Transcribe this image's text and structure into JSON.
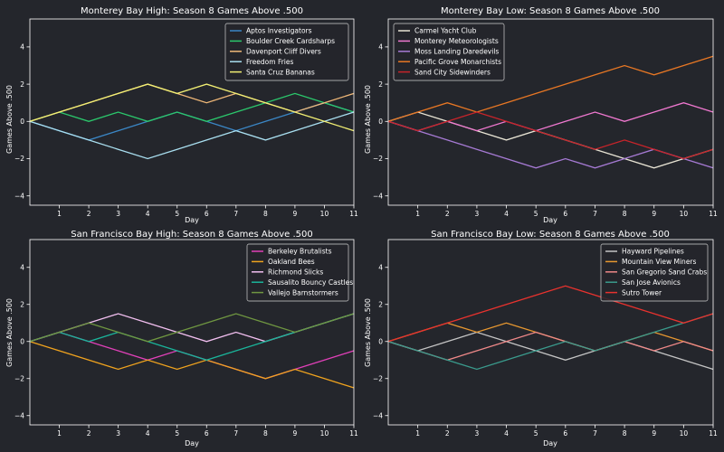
{
  "figure": {
    "background": "#24262c",
    "axes_color": "#ffffff",
    "legend_bg": "#24262c",
    "legend_border": "#cfcfcf"
  },
  "chart_data": [
    {
      "type": "line",
      "title": "Monterey Bay High: Season 8 Games Above .500",
      "xlabel": "Day",
      "ylabel": "Games Above .500",
      "x": [
        0,
        1,
        2,
        3,
        4,
        5,
        6,
        7,
        8,
        9,
        10,
        11
      ],
      "xticks": [
        1,
        2,
        3,
        4,
        5,
        6,
        7,
        8,
        9,
        10,
        11
      ],
      "yticks": [
        -4,
        -2,
        0,
        2,
        4
      ],
      "xlim": [
        0,
        11
      ],
      "ylim": [
        -4.5,
        5.5
      ],
      "grid": false,
      "legend": "top-right",
      "series": [
        {
          "name": "Aptos Investigators",
          "color": "#3b87c6",
          "values": [
            0,
            -0.5,
            -1,
            -0.5,
            0,
            0.5,
            0,
            -0.5,
            0,
            0.5,
            1,
            0.5
          ]
        },
        {
          "name": "Boulder Creek Cardsharps",
          "color": "#2bc86c",
          "values": [
            0,
            0.5,
            0,
            0.5,
            0,
            0.5,
            0,
            0.5,
            1,
            1.5,
            1,
            0.5
          ]
        },
        {
          "name": "Davenport Cliff Divers",
          "color": "#f0b878",
          "values": [
            0,
            0.5,
            1,
            1.5,
            2,
            1.5,
            1,
            1.5,
            1,
            0.5,
            1,
            1.5
          ]
        },
        {
          "name": "Freedom Fries",
          "color": "#a9dff0",
          "values": [
            0,
            -0.5,
            -1,
            -1.5,
            -2,
            -1.5,
            -1,
            -0.5,
            -1,
            -0.5,
            0,
            0.5
          ]
        },
        {
          "name": "Santa Cruz Bananas",
          "color": "#f2ef73",
          "values": [
            0,
            0.5,
            1,
            1.5,
            2,
            1.5,
            2,
            1.5,
            1,
            0.5,
            0,
            -0.5
          ]
        }
      ]
    },
    {
      "type": "line",
      "title": "Monterey Bay Low: Season 8 Games Above .500",
      "xlabel": "Day",
      "ylabel": "Games Above .500",
      "x": [
        0,
        1,
        2,
        3,
        4,
        5,
        6,
        7,
        8,
        9,
        10,
        11
      ],
      "xticks": [
        1,
        2,
        3,
        4,
        5,
        6,
        7,
        8,
        9,
        10,
        11
      ],
      "yticks": [
        -4,
        -2,
        0,
        2,
        4
      ],
      "xlim": [
        0,
        11
      ],
      "ylim": [
        -4.5,
        5.5
      ],
      "grid": false,
      "legend": "top-left",
      "series": [
        {
          "name": "Carmel Yacht Club",
          "color": "#e8e4d4",
          "values": [
            0,
            0.5,
            0,
            -0.5,
            -1,
            -0.5,
            -1,
            -1.5,
            -2,
            -2.5,
            -2,
            -1.5
          ]
        },
        {
          "name": "Monterey Meteorologists",
          "color": "#f078d0",
          "values": [
            0,
            -0.5,
            0,
            -0.5,
            0,
            -0.5,
            0,
            0.5,
            0,
            0.5,
            1,
            0.5
          ]
        },
        {
          "name": "Moss Landing Daredevils",
          "color": "#a67ad4",
          "values": [
            0,
            -0.5,
            -1,
            -1.5,
            -2,
            -2.5,
            -2,
            -2.5,
            -2,
            -1.5,
            -2,
            -2.5
          ]
        },
        {
          "name": "Pacific Grove Monarchists",
          "color": "#e87724",
          "values": [
            0,
            0.5,
            1,
            0.5,
            1,
            1.5,
            2,
            2.5,
            3,
            2.5,
            3,
            3.5
          ]
        },
        {
          "name": "Sand City Sidewinders",
          "color": "#c8242a",
          "values": [
            0,
            -0.5,
            0,
            0.5,
            0,
            -0.5,
            -1,
            -1.5,
            -1,
            -1.5,
            -2,
            -1.5
          ]
        }
      ]
    },
    {
      "type": "line",
      "title": "San Francisco Bay High: Season 8 Games Above .500",
      "xlabel": "Day",
      "ylabel": "Games Above .500",
      "x": [
        0,
        1,
        2,
        3,
        4,
        5,
        6,
        7,
        8,
        9,
        10,
        11
      ],
      "xticks": [
        1,
        2,
        3,
        4,
        5,
        6,
        7,
        8,
        9,
        10,
        11
      ],
      "yticks": [
        -4,
        -2,
        0,
        2,
        4
      ],
      "xlim": [
        0,
        11
      ],
      "ylim": [
        -4.5,
        5.5
      ],
      "grid": false,
      "legend": "top-right",
      "series": [
        {
          "name": "Berkeley Brutalists",
          "color": "#e040b8",
          "values": [
            0,
            0.5,
            0,
            -0.5,
            -1,
            -0.5,
            -1,
            -1.5,
            -2,
            -1.5,
            -1,
            -0.5
          ]
        },
        {
          "name": "Oakland Bees",
          "color": "#f0a31e",
          "values": [
            0,
            -0.5,
            -1,
            -1.5,
            -1,
            -1.5,
            -1,
            -1.5,
            -2,
            -1.5,
            -2,
            -2.5
          ]
        },
        {
          "name": "Richmond Slicks",
          "color": "#f2bff0",
          "values": [
            0,
            0.5,
            1,
            1.5,
            1,
            0.5,
            0,
            0.5,
            0,
            0.5,
            1,
            1.5
          ]
        },
        {
          "name": "Sausalito Bouncy Castles",
          "color": "#1ab49a",
          "values": [
            0,
            0.5,
            0,
            0.5,
            0,
            -0.5,
            -1,
            -0.5,
            0,
            0.5,
            1,
            1.5
          ]
        },
        {
          "name": "Vallejo Barnstormers",
          "color": "#6f9641",
          "values": [
            0,
            0.5,
            1,
            0.5,
            0,
            0.5,
            1,
            1.5,
            1,
            0.5,
            1,
            1.5
          ]
        }
      ]
    },
    {
      "type": "line",
      "title": "San Francisco Bay Low: Season 8 Games Above .500",
      "xlabel": "Day",
      "ylabel": "Games Above .500",
      "x": [
        0,
        1,
        2,
        3,
        4,
        5,
        6,
        7,
        8,
        9,
        10,
        11
      ],
      "xticks": [
        1,
        2,
        3,
        4,
        5,
        6,
        7,
        8,
        9,
        10,
        11
      ],
      "yticks": [
        -4,
        -2,
        0,
        2,
        4
      ],
      "xlim": [
        0,
        11
      ],
      "ylim": [
        -4.5,
        5.5
      ],
      "grid": false,
      "legend": "top-right",
      "series": [
        {
          "name": "Hayward Pipelines",
          "color": "#c4c4c4",
          "values": [
            0,
            -0.5,
            0,
            0.5,
            0,
            -0.5,
            -1,
            -0.5,
            0,
            -0.5,
            -1,
            -1.5
          ]
        },
        {
          "name": "Mountain View Miners",
          "color": "#e89830",
          "values": [
            0,
            0.5,
            1,
            0.5,
            1,
            0.5,
            0,
            -0.5,
            0,
            0.5,
            0,
            -0.5
          ]
        },
        {
          "name": "San Gregorio Sand Crabs",
          "color": "#ee8888",
          "values": [
            0,
            -0.5,
            -1,
            -0.5,
            0,
            0.5,
            0,
            -0.5,
            0,
            -0.5,
            0,
            -0.5
          ]
        },
        {
          "name": "San Jose Avionics",
          "color": "#3a9a8c",
          "values": [
            0,
            -0.5,
            -1,
            -1.5,
            -1,
            -0.5,
            0,
            -0.5,
            0,
            0.5,
            1,
            1.5
          ]
        },
        {
          "name": "Sutro Tower",
          "color": "#e8322e",
          "values": [
            0,
            0.5,
            1,
            1.5,
            2,
            2.5,
            3,
            2.5,
            2,
            1.5,
            1,
            1.5
          ]
        }
      ]
    }
  ]
}
